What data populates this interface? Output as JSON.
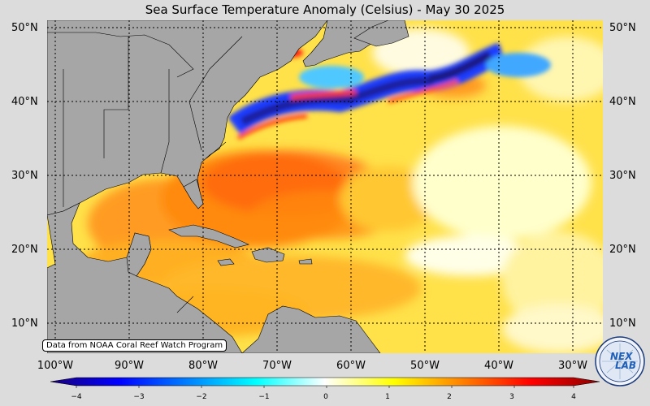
{
  "title": "Sea Surface Temperature Anomaly (Celsius) - May 30 2025",
  "lat_labels": [
    "50°N",
    "40°N",
    "30°N",
    "20°N",
    "10°N"
  ],
  "lon_labels": [
    "100°W",
    "90°W",
    "80°W",
    "70°W",
    "60°W",
    "50°W",
    "40°W",
    "30°W"
  ],
  "credit": "Data from NOAA Coral Reef Watch Program",
  "colorbar": {
    "ticks": [
      "−4",
      "−3",
      "−2",
      "−1",
      "0",
      "1",
      "2",
      "3",
      "4"
    ],
    "colors": [
      "#1a007a",
      "#0000ff",
      "#0080ff",
      "#00ffff",
      "#ffffff",
      "#ffff00",
      "#ff8000",
      "#ff0000",
      "#8b0000"
    ]
  },
  "logo": {
    "text_top": "NEX",
    "text_bottom": "LAB"
  },
  "colors": {
    "land": "#a6a6a6",
    "background": "#dcdcdc",
    "warm": "#ff9a00",
    "cold": "#1e2db5"
  }
}
